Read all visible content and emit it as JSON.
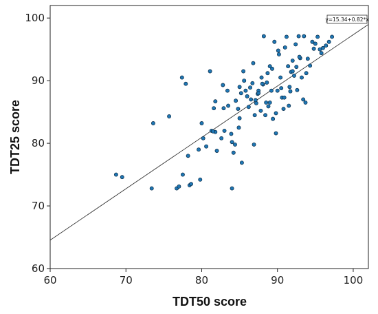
{
  "chart_data": {
    "type": "scatter",
    "title": "",
    "xlabel": "TDT50 score",
    "ylabel": "TDT25 score",
    "xlim": [
      60,
      102
    ],
    "ylim": [
      60,
      102
    ],
    "xticks": [
      60,
      70,
      80,
      90,
      100
    ],
    "yticks": [
      60,
      70,
      80,
      90,
      100
    ],
    "grid": false,
    "fit_line": {
      "intercept": 15.34,
      "slope": 0.82,
      "label": "y=15.34+0.82*x"
    },
    "marker_color": "#1f77b4",
    "marker_edge": "#0b2a45",
    "points": {
      "x": [
        68.7,
        69.5,
        73.4,
        73.6,
        75.7,
        76.7,
        77.0,
        77.4,
        77.5,
        77.9,
        78.2,
        78.4,
        78.6,
        79.6,
        79.8,
        80.0,
        80.2,
        80.6,
        81.1,
        81.3,
        81.6,
        81.8,
        81.8,
        82.0,
        82.6,
        82.9,
        83.4,
        83.5,
        83.9,
        84.0,
        84.2,
        84.4,
        84.5,
        84.9,
        85.0,
        85.2,
        85.3,
        85.5,
        85.8,
        86.2,
        86.5,
        86.7,
        86.9,
        87.0,
        87.2,
        87.4,
        87.5,
        87.8,
        88.1,
        88.2,
        88.4,
        88.5,
        88.8,
        89.0,
        89.2,
        89.4,
        89.6,
        89.8,
        90.0,
        90.2,
        90.4,
        90.6,
        90.8,
        91.0,
        91.2,
        91.4,
        91.6,
        91.8,
        92.0,
        92.2,
        92.4,
        92.6,
        92.8,
        93.0,
        93.2,
        93.5,
        93.8,
        94.0,
        94.3,
        94.6,
        95.0,
        95.3,
        95.6,
        96.0,
        96.4,
        96.8,
        97.2,
        87.5,
        88.0,
        89.0,
        90.5,
        92.0,
        85.0,
        86.0,
        88.7,
        91.5,
        83.0,
        84.8,
        86.4,
        87.9,
        89.3,
        90.9,
        92.5,
        93.7,
        84.0,
        85.6,
        87.1,
        88.6,
        90.1,
        91.7,
        93.4,
        81.5,
        82.8,
        86.8,
        89.8,
        92.9,
        94.8,
        95.8
      ],
      "y": [
        75.0,
        74.6,
        72.8,
        83.2,
        84.3,
        72.8,
        73.1,
        90.5,
        75.0,
        89.5,
        78.0,
        73.3,
        73.5,
        79.0,
        74.2,
        83.2,
        80.8,
        79.5,
        91.5,
        82.0,
        85.6,
        86.7,
        81.8,
        78.8,
        80.8,
        85.6,
        88.4,
        86.0,
        81.5,
        72.8,
        78.5,
        79.8,
        86.8,
        82.5,
        89.0,
        88.0,
        76.9,
        91.5,
        88.4,
        85.8,
        87.0,
        89.6,
        79.8,
        84.5,
        86.4,
        87.9,
        88.4,
        85.2,
        89.4,
        97.1,
        84.5,
        86.5,
        85.9,
        92.3,
        88.4,
        83.9,
        96.2,
        81.6,
        88.4,
        94.2,
        90.5,
        87.3,
        85.5,
        95.3,
        97.0,
        92.3,
        89.0,
        91.4,
        93.2,
        90.8,
        95.8,
        88.5,
        97.1,
        93.6,
        90.5,
        97.1,
        91.2,
        93.5,
        92.4,
        96.2,
        95.9,
        97.0,
        95.0,
        95.2,
        95.6,
        96.2,
        97.0,
        88.0,
        89.5,
        86.5,
        88.8,
        91.5,
        84.0,
        87.5,
        91.2,
        86.0,
        82.0,
        85.5,
        88.9,
        90.5,
        91.9,
        87.3,
        92.2,
        86.5,
        80.2,
        90.0,
        86.9,
        89.7,
        94.8,
        88.3,
        87.0,
        81.9,
        89.3,
        92.8,
        84.8,
        93.8,
        95.1,
        94.4
      ]
    }
  }
}
